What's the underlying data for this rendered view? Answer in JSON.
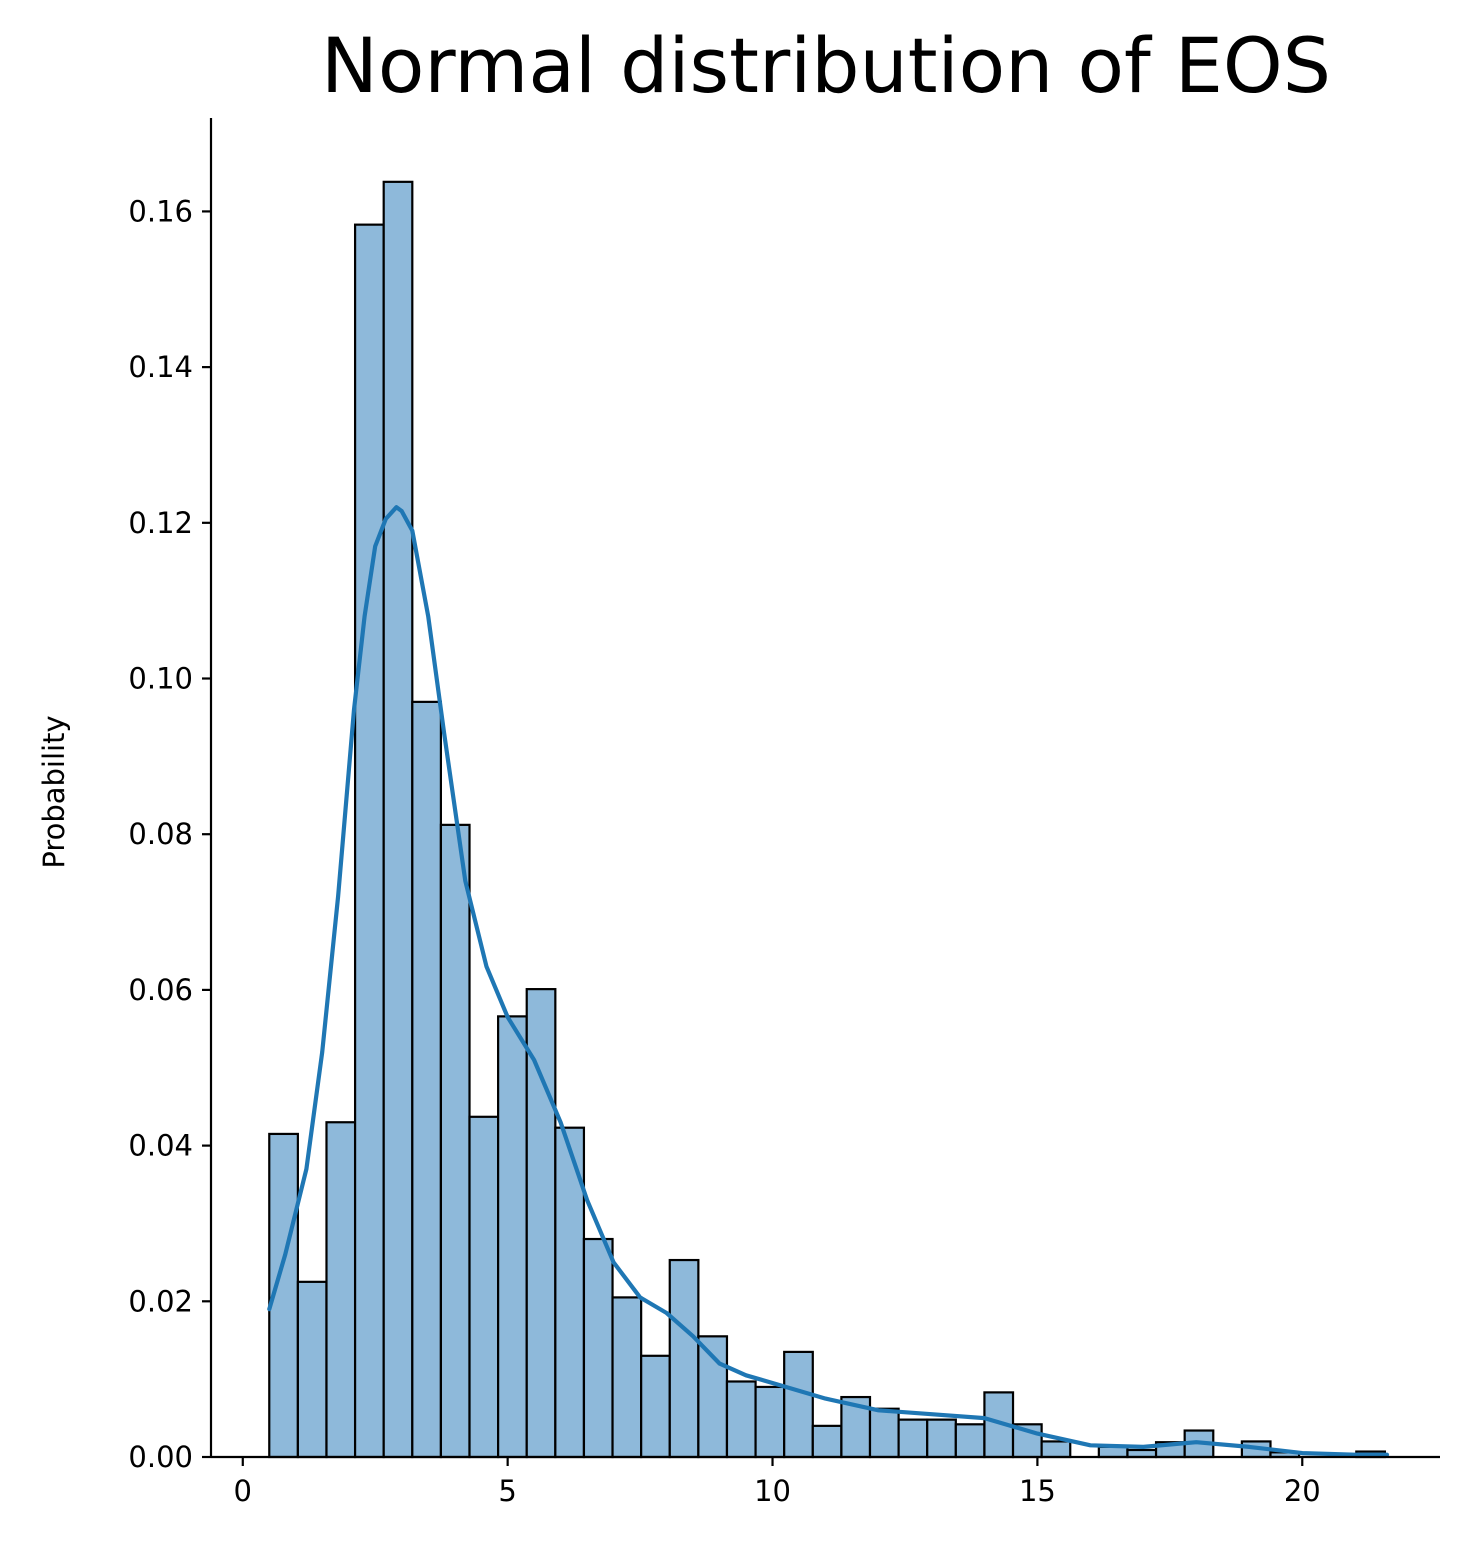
{
  "chart_data": {
    "type": "histogram",
    "title": "Normal distribution of EOS",
    "xlabel": "",
    "ylabel": "Probability",
    "xlim": [
      -0.6,
      22.6
    ],
    "ylim": [
      0,
      0.172
    ],
    "xticks": [
      0,
      5,
      10,
      15,
      20
    ],
    "yticks": [
      0.0,
      0.02,
      0.04,
      0.06,
      0.08,
      0.1,
      0.12,
      0.14,
      0.16
    ],
    "bin_edges": [
      0.5,
      1.04,
      1.58,
      2.12,
      2.66,
      3.2,
      3.74,
      4.28,
      4.82,
      5.36,
      5.9,
      6.44,
      6.98,
      7.52,
      8.06,
      8.6,
      9.14,
      9.68,
      10.22,
      10.76,
      11.3,
      11.84,
      12.38,
      12.92,
      13.46,
      14.0,
      14.54,
      15.08,
      15.62,
      16.16,
      16.7,
      17.24,
      17.78,
      18.32,
      18.86,
      19.4,
      19.94,
      20.48,
      21.02,
      21.56
    ],
    "values": [
      0.0415,
      0.0225,
      0.043,
      0.1583,
      0.1638,
      0.097,
      0.0812,
      0.0437,
      0.0566,
      0.0601,
      0.0423,
      0.028,
      0.0205,
      0.013,
      0.0253,
      0.0155,
      0.0097,
      0.009,
      0.0135,
      0.004,
      0.0077,
      0.0062,
      0.0048,
      0.0048,
      0.0042,
      0.0083,
      0.0042,
      0.002,
      0.0,
      0.0013,
      0.0009,
      0.0019,
      0.0034,
      0.0,
      0.002,
      0.0006,
      0.0,
      0.0,
      0.0007
    ],
    "kde": {
      "x": [
        0.5,
        0.8,
        1.2,
        1.5,
        1.8,
        2.1,
        2.3,
        2.5,
        2.7,
        2.9,
        3.0,
        3.2,
        3.5,
        3.8,
        4.2,
        4.6,
        5.0,
        5.5,
        6.0,
        6.5,
        7.0,
        7.5,
        8.0,
        8.5,
        9.0,
        9.5,
        10.0,
        11.0,
        12.0,
        13.0,
        14.0,
        15.0,
        16.0,
        17.0,
        18.0,
        19.0,
        20.0,
        21.0,
        21.6
      ],
      "y": [
        0.019,
        0.026,
        0.037,
        0.052,
        0.072,
        0.096,
        0.108,
        0.117,
        0.1205,
        0.122,
        0.1215,
        0.119,
        0.108,
        0.093,
        0.074,
        0.063,
        0.0565,
        0.051,
        0.043,
        0.033,
        0.025,
        0.0205,
        0.0185,
        0.0155,
        0.012,
        0.0105,
        0.0095,
        0.0075,
        0.006,
        0.0055,
        0.005,
        0.003,
        0.0015,
        0.0013,
        0.0019,
        0.0013,
        0.0005,
        0.0003,
        0.0003
      ]
    },
    "colors": {
      "bar_fill": "#8eb9da",
      "bar_edge": "#000000",
      "kde_line": "#1f77b4"
    },
    "grid": false,
    "legend": "none"
  }
}
